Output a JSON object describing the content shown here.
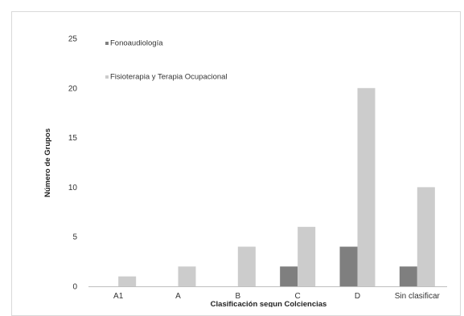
{
  "chart_data": {
    "type": "bar",
    "title": "",
    "xlabel": "Clasificación segun Colciencias",
    "ylabel": "Número de Grupos",
    "categories": [
      "A1",
      "A",
      "B",
      "C",
      "D",
      "Sin clasificar"
    ],
    "series": [
      {
        "name": "Fonoaudiología",
        "values": [
          0,
          0,
          0,
          2,
          4,
          2
        ],
        "color": "#7f7f7f"
      },
      {
        "name": "Fisioterapia y Terapia Ocupacional",
        "values": [
          1,
          2,
          4,
          6,
          20,
          10
        ],
        "color": "#cccccc"
      }
    ],
    "ylim": [
      0,
      25
    ],
    "yticks": [
      "0",
      "5",
      "10",
      "15",
      "20",
      "25"
    ],
    "grid": false,
    "legend_position": "top-left"
  }
}
